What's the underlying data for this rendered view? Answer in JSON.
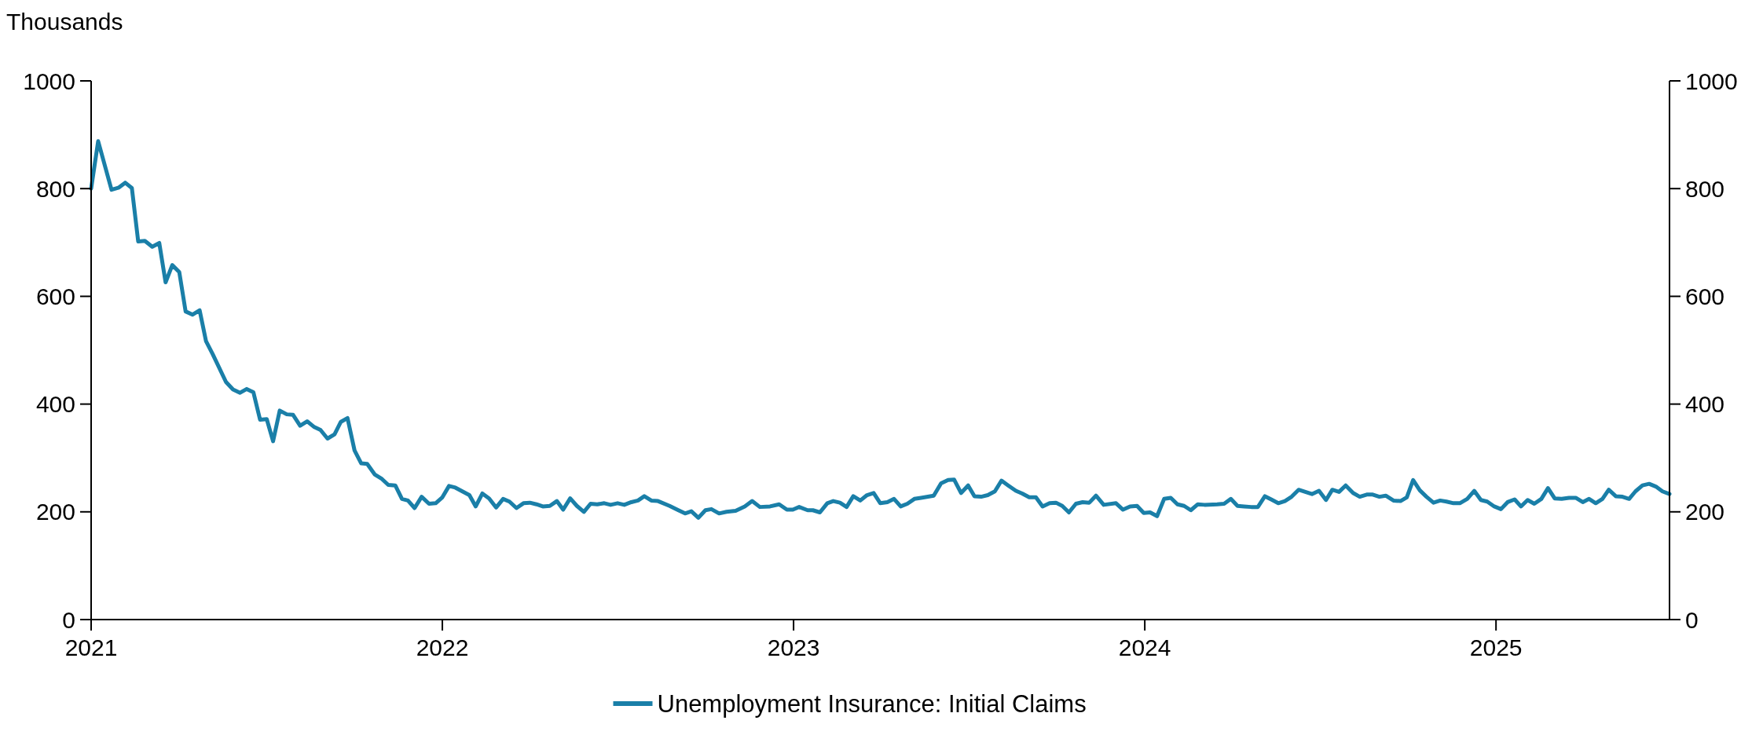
{
  "chart_data": {
    "type": "line",
    "ylabel": "Thousands",
    "xlim": [
      2021,
      2025.494
    ],
    "xticks": [
      2021,
      2022,
      2023,
      2024,
      2025
    ],
    "ylim": [
      0,
      1000
    ],
    "yticks": [
      0,
      200,
      400,
      600,
      800,
      1000
    ],
    "y2lim": [
      0,
      1000
    ],
    "y2ticks": [
      0,
      200,
      400,
      600,
      800,
      1000
    ],
    "grid": false,
    "legend": "bottom",
    "line_style": "solid",
    "marker": "none",
    "series": [
      {
        "name": "Unemployment Insurance: Initial Claims",
        "color": "#1a7fa8",
        "x": [
          2021,
          2021.02,
          2021.058,
          2021.079,
          2021.097,
          2021.116,
          2021.134,
          2021.153,
          2021.174,
          2021.194,
          2021.212,
          2021.231,
          2021.251,
          2021.269,
          2021.289,
          2021.309,
          2021.327,
          2021.346,
          2021.384,
          2021.404,
          2021.424,
          2021.443,
          2021.462,
          2021.481,
          2021.5,
          2021.518,
          2021.537,
          2021.557,
          2021.575,
          2021.595,
          2021.615,
          2021.634,
          2021.653,
          2021.673,
          2021.693,
          2021.711,
          2021.73,
          2021.75,
          2021.769,
          2021.786,
          2021.808,
          2021.828,
          2021.846,
          2021.866,
          2021.885,
          2021.902,
          2021.921,
          2021.941,
          2021.962,
          2021.981,
          2022,
          2022.019,
          2022.037,
          2022.077,
          2022.095,
          2022.114,
          2022.133,
          2022.153,
          2022.173,
          2022.191,
          2022.211,
          2022.231,
          2022.249,
          2022.268,
          2022.286,
          2022.306,
          2022.326,
          2022.344,
          2022.364,
          2022.383,
          2022.403,
          2022.422,
          2022.441,
          2022.461,
          2022.479,
          2022.499,
          2022.518,
          2022.538,
          2022.557,
          2022.575,
          2022.595,
          2022.614,
          2022.647,
          2022.672,
          2022.691,
          2022.709,
          2022.729,
          2022.749,
          2022.766,
          2022.788,
          2022.809,
          2022.835,
          2022.861,
          2022.882,
          2022.904,
          2022.933,
          2022.959,
          2022.981,
          2022.998,
          2023.016,
          2023.04,
          2023.055,
          2023.075,
          2023.096,
          2023.113,
          2023.132,
          2023.151,
          2023.17,
          2023.19,
          2023.209,
          2023.228,
          2023.247,
          2023.267,
          2023.286,
          2023.305,
          2023.324,
          2023.344,
          2023.363,
          2023.399,
          2023.42,
          2023.44,
          2023.457,
          2023.477,
          2023.497,
          2023.515,
          2023.534,
          2023.553,
          2023.573,
          2023.592,
          2023.611,
          2023.633,
          2023.651,
          2023.671,
          2023.69,
          2023.709,
          2023.729,
          2023.747,
          2023.765,
          2023.784,
          2023.804,
          2023.823,
          2023.842,
          2023.861,
          2023.883,
          2023.918,
          2023.938,
          2023.958,
          2023.978,
          2023.997,
          2024.015,
          2024.035,
          2024.055,
          2024.074,
          2024.093,
          2024.112,
          2024.131,
          2024.151,
          2024.17,
          2024.206,
          2024.226,
          2024.245,
          2024.264,
          2024.283,
          2024.303,
          2024.322,
          2024.342,
          2024.36,
          2024.38,
          2024.399,
          2024.418,
          2024.438,
          2024.457,
          2024.476,
          2024.496,
          2024.516,
          2024.534,
          2024.553,
          2024.572,
          2024.593,
          2024.612,
          2024.632,
          2024.649,
          2024.668,
          2024.686,
          2024.708,
          2024.728,
          2024.746,
          2024.764,
          2024.783,
          2024.802,
          2024.822,
          2024.841,
          2024.859,
          2024.879,
          2024.897,
          2024.918,
          2024.938,
          2024.957,
          2024.975,
          2024.995,
          2025.014,
          2025.033,
          2025.053,
          2025.071,
          2025.09,
          2025.109,
          2025.129,
          2025.148,
          2025.167,
          2025.187,
          2025.208,
          2025.227,
          2025.247,
          2025.265,
          2025.284,
          2025.303,
          2025.321,
          2025.341,
          2025.36,
          2025.379,
          2025.397,
          2025.417,
          2025.436,
          2025.455,
          2025.474,
          2025.494
        ],
        "values": [
          800,
          888,
          798,
          802,
          811,
          801,
          702,
          703,
          692,
          699,
          626,
          658,
          645,
          572,
          566,
          574,
          517,
          493,
          441,
          427,
          421,
          428,
          422,
          371,
          372,
          331,
          388,
          381,
          380,
          360,
          368,
          358,
          352,
          336,
          344,
          367,
          374,
          314,
          290,
          289,
          269,
          261,
          250,
          249,
          224,
          221,
          207,
          228,
          215,
          216,
          227,
          248,
          245,
          231,
          210,
          234,
          225,
          208,
          224,
          219,
          207,
          216,
          217,
          214,
          210,
          211,
          220,
          204,
          225,
          211,
          200,
          215,
          214,
          216,
          213,
          216,
          213,
          218,
          221,
          229,
          221,
          220,
          211,
          203,
          197,
          201,
          189,
          203,
          205,
          197,
          200,
          202,
          210,
          220,
          209,
          210,
          214,
          204,
          204,
          209,
          203,
          203,
          199,
          216,
          220,
          217,
          209,
          229,
          221,
          231,
          235,
          216,
          218,
          224,
          210,
          215,
          224,
          226,
          230,
          253,
          259,
          260,
          235,
          249,
          229,
          228,
          231,
          238,
          258,
          249,
          239,
          234,
          227,
          227,
          210,
          216,
          217,
          211,
          199,
          215,
          218,
          217,
          230,
          213,
          216,
          204,
          210,
          211,
          198,
          199,
          192,
          224,
          226,
          214,
          211,
          203,
          214,
          213,
          214,
          215,
          224,
          211,
          210,
          209,
          209,
          229,
          223,
          216,
          220,
          228,
          241,
          237,
          233,
          239,
          222,
          241,
          237,
          249,
          235,
          228,
          232,
          232,
          228,
          230,
          221,
          220,
          227,
          259,
          240,
          228,
          217,
          221,
          219,
          216,
          216,
          224,
          239,
          222,
          219,
          210,
          205,
          218,
          223,
          210,
          222,
          215,
          224,
          244,
          225,
          224,
          226,
          226,
          218,
          224,
          216,
          224,
          241,
          229,
          228,
          224,
          238,
          249,
          252,
          247,
          238,
          233
        ]
      }
    ]
  }
}
